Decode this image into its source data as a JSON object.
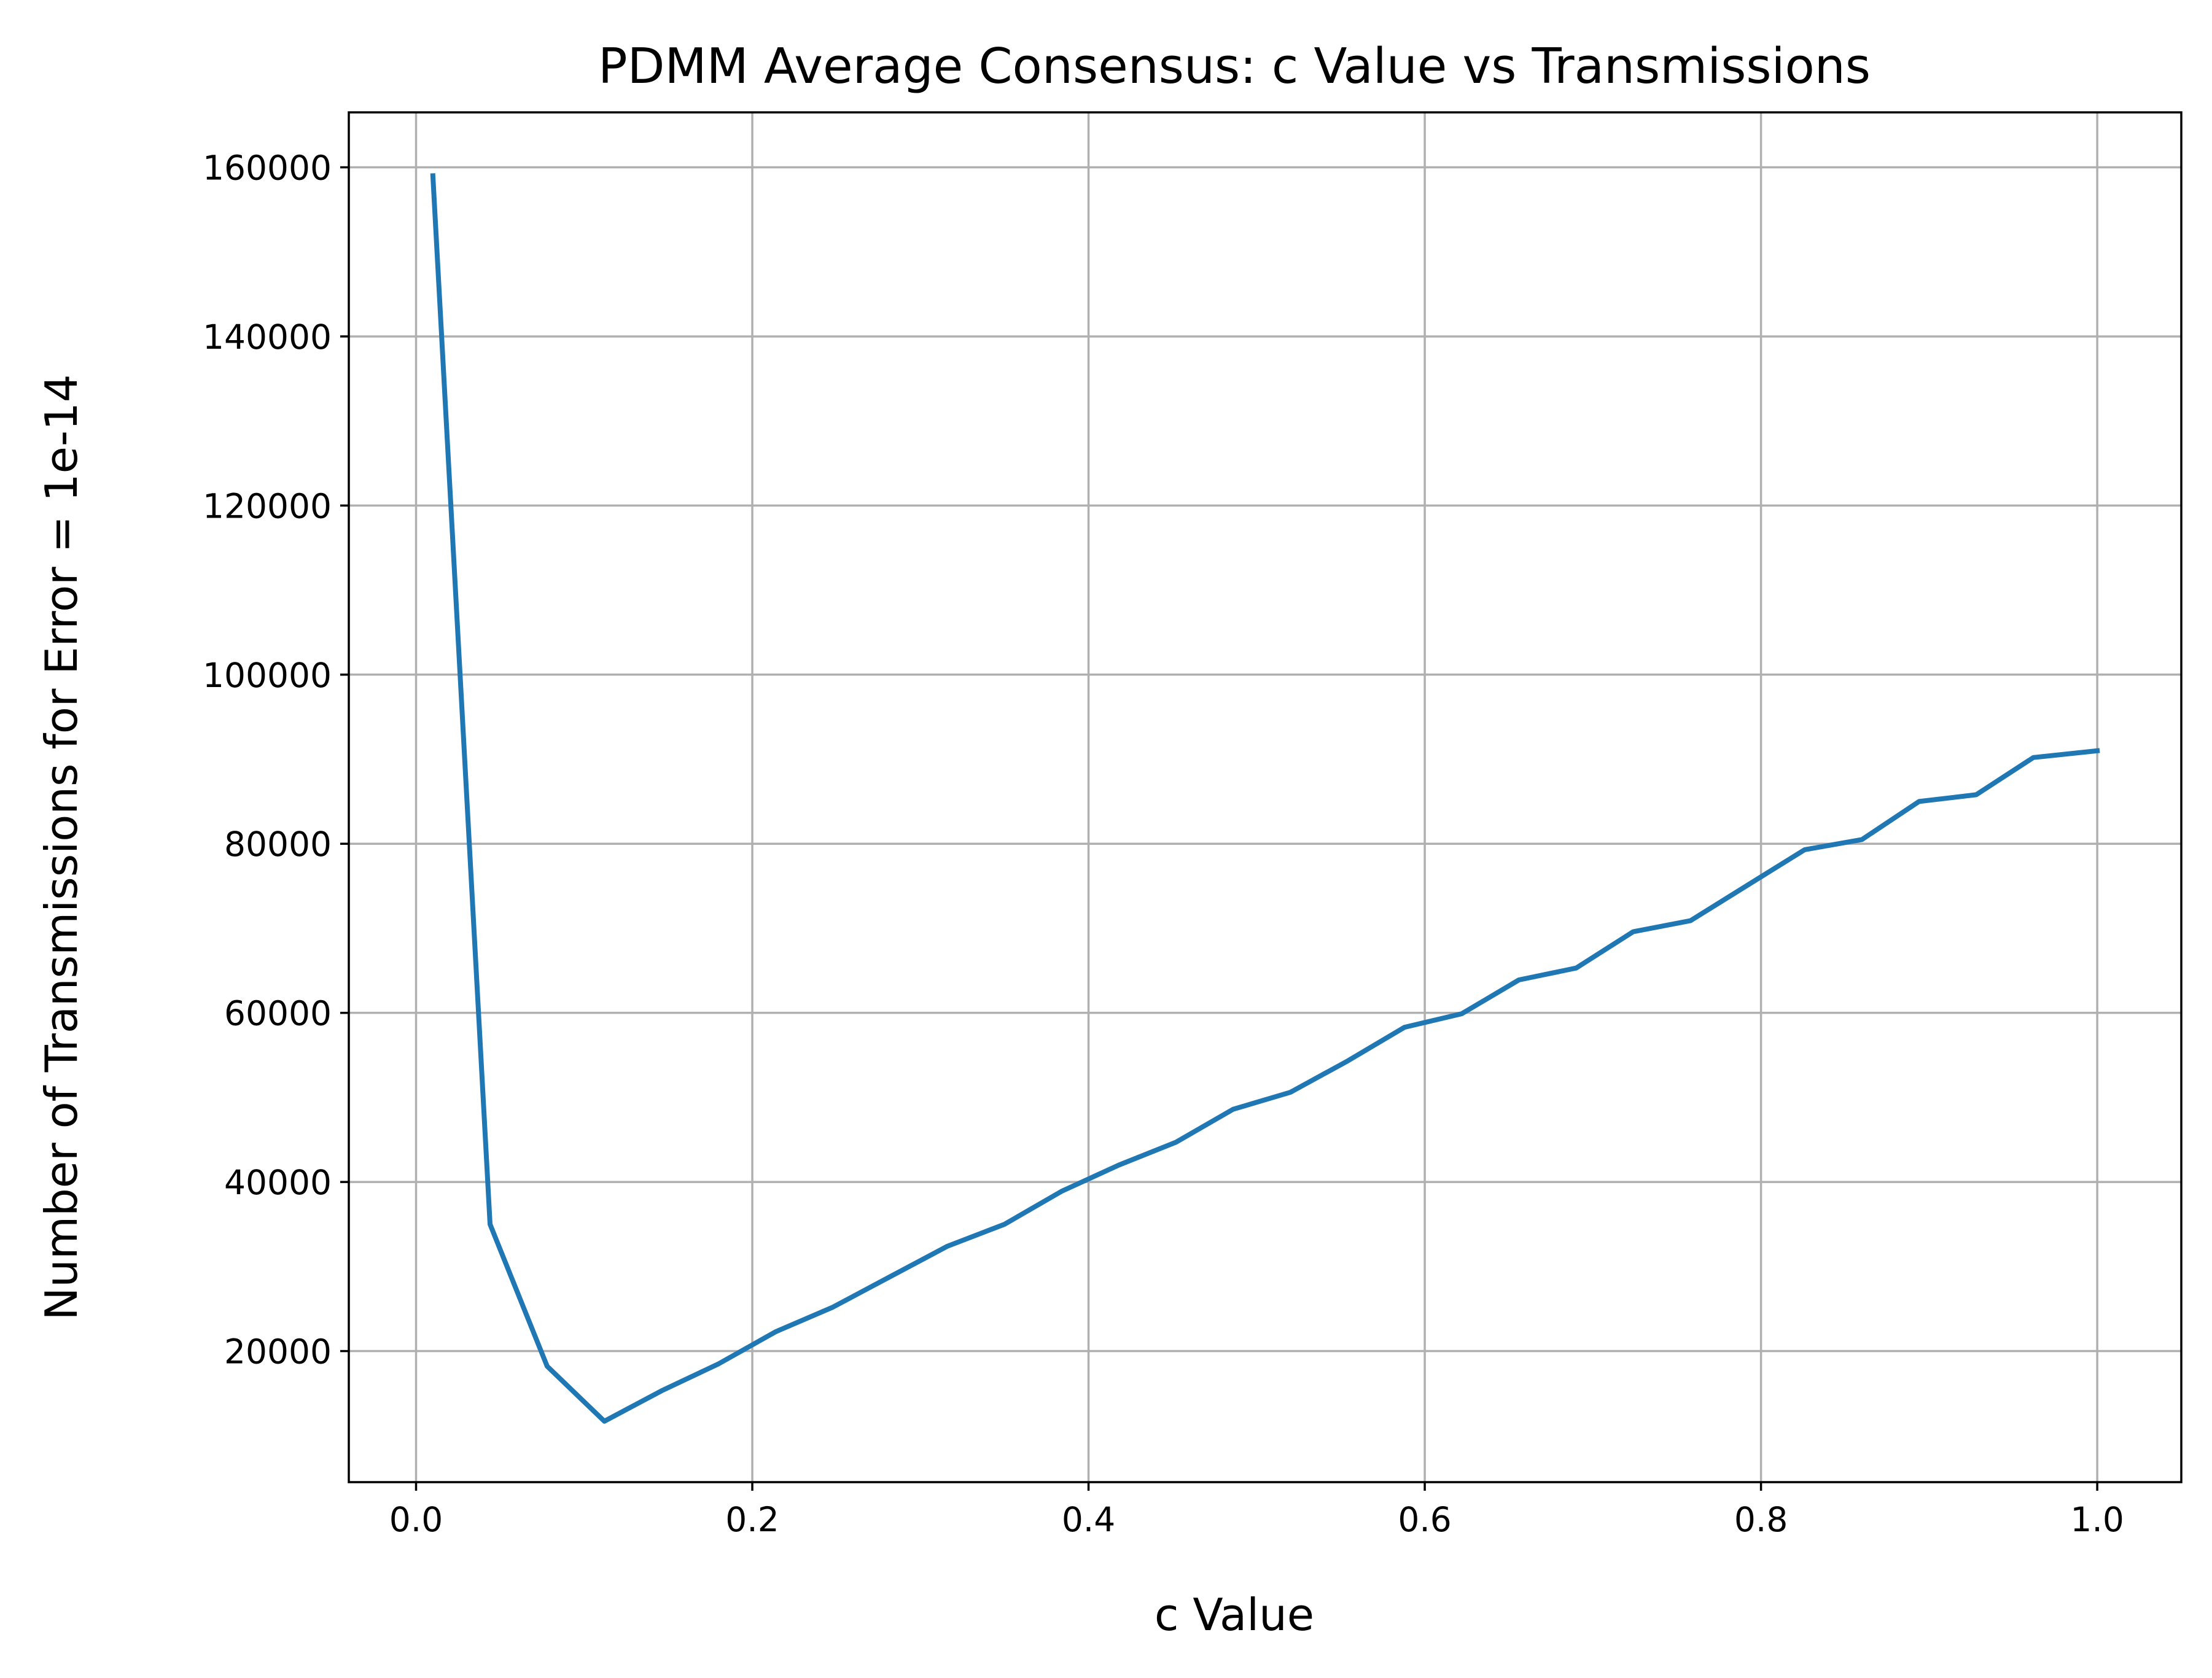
{
  "chart_data": {
    "type": "line",
    "title": "PDMM Average Consensus: c Value vs Transmissions",
    "xlabel": "c Value",
    "ylabel": "Number of Transmissions for Error = 1e-14",
    "xlim": [
      -0.04,
      1.05
    ],
    "ylim": [
      4500,
      166500
    ],
    "xticks": [
      0.0,
      0.2,
      0.4,
      0.6,
      0.8,
      1.0
    ],
    "xtick_labels": [
      "0.0",
      "0.2",
      "0.4",
      "0.6",
      "0.8",
      "1.0"
    ],
    "yticks": [
      20000,
      40000,
      60000,
      80000,
      100000,
      120000,
      140000,
      160000
    ],
    "ytick_labels": [
      "20000",
      "40000",
      "60000",
      "80000",
      "100000",
      "120000",
      "140000",
      "160000"
    ],
    "grid": true,
    "color": "#1f77b4",
    "series": [
      {
        "x": [
          0.01,
          0.044,
          0.078,
          0.112,
          0.146,
          0.18,
          0.214,
          0.248,
          0.282,
          0.316,
          0.35,
          0.384,
          0.418,
          0.452,
          0.486,
          0.52,
          0.554,
          0.588,
          0.622,
          0.656,
          0.69,
          0.724,
          0.758,
          0.792,
          0.826,
          0.86,
          0.894,
          0.928,
          0.962,
          1.0
        ],
        "values": [
          159000,
          35000,
          18200,
          11700,
          15300,
          18500,
          22300,
          25200,
          28800,
          32400,
          35000,
          38900,
          42000,
          44700,
          48600,
          50600,
          54300,
          58300,
          59900,
          63900,
          65300,
          69600,
          70900,
          75100,
          79300,
          80500,
          85000,
          85800,
          90200,
          91000
        ]
      }
    ]
  }
}
